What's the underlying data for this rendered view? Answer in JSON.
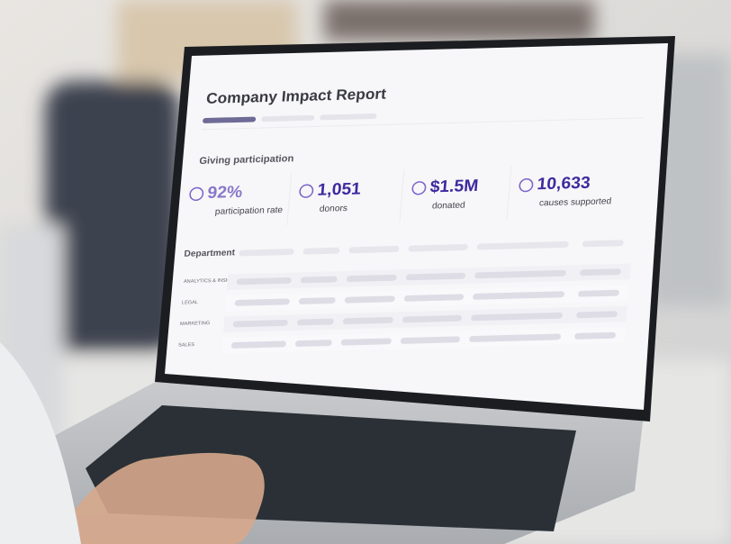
{
  "header": {
    "title": "Company Impact Report"
  },
  "section": {
    "title": "Giving participation"
  },
  "stats": [
    {
      "value": "92%",
      "label": "participation rate"
    },
    {
      "value": "1,051",
      "label": "donors"
    },
    {
      "value": "$1.5M",
      "label": "donated"
    },
    {
      "value": "10,633",
      "label": "causes supported"
    }
  ],
  "table": {
    "header": "Department",
    "rows": [
      "ANALYTICS & INSIGHTS",
      "LEGAL",
      "MARKETING",
      "SALES"
    ]
  }
}
